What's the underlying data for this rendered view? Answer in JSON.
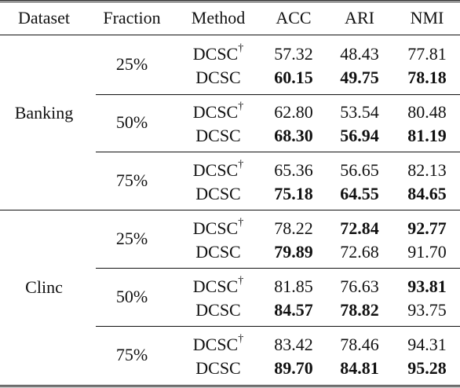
{
  "header": [
    "Dataset",
    "Fraction",
    "Method",
    "ACC",
    "ARI",
    "NMI"
  ],
  "groups": [
    {
      "dataset": "Banking",
      "blocks": [
        {
          "fraction": "25%",
          "rows": [
            {
              "method": "DCSC",
              "dagger": "†",
              "acc": "57.32",
              "ari": "48.43",
              "nmi": "77.81",
              "bold": [
                false,
                false,
                false
              ]
            },
            {
              "method": "DCSC",
              "dagger": "",
              "acc": "60.15",
              "ari": "49.75",
              "nmi": "78.18",
              "bold": [
                true,
                true,
                true
              ]
            }
          ]
        },
        {
          "fraction": "50%",
          "rows": [
            {
              "method": "DCSC",
              "dagger": "†",
              "acc": "62.80",
              "ari": "53.54",
              "nmi": "80.48",
              "bold": [
                false,
                false,
                false
              ]
            },
            {
              "method": "DCSC",
              "dagger": "",
              "acc": "68.30",
              "ari": "56.94",
              "nmi": "81.19",
              "bold": [
                true,
                true,
                true
              ]
            }
          ]
        },
        {
          "fraction": "75%",
          "rows": [
            {
              "method": "DCSC",
              "dagger": "†",
              "acc": "65.36",
              "ari": "56.65",
              "nmi": "82.13",
              "bold": [
                false,
                false,
                false
              ]
            },
            {
              "method": "DCSC",
              "dagger": "",
              "acc": "75.18",
              "ari": "64.55",
              "nmi": "84.65",
              "bold": [
                true,
                true,
                true
              ]
            }
          ]
        }
      ]
    },
    {
      "dataset": "Clinc",
      "blocks": [
        {
          "fraction": "25%",
          "rows": [
            {
              "method": "DCSC",
              "dagger": "†",
              "acc": "78.22",
              "ari": "72.84",
              "nmi": "92.77",
              "bold": [
                false,
                true,
                true
              ]
            },
            {
              "method": "DCSC",
              "dagger": "",
              "acc": "79.89",
              "ari": "72.68",
              "nmi": "91.70",
              "bold": [
                true,
                false,
                false
              ]
            }
          ]
        },
        {
          "fraction": "50%",
          "rows": [
            {
              "method": "DCSC",
              "dagger": "†",
              "acc": "81.85",
              "ari": "76.63",
              "nmi": "93.81",
              "bold": [
                false,
                false,
                true
              ]
            },
            {
              "method": "DCSC",
              "dagger": "",
              "acc": "84.57",
              "ari": "78.82",
              "nmi": "93.75",
              "bold": [
                true,
                true,
                false
              ]
            }
          ]
        },
        {
          "fraction": "75%",
          "rows": [
            {
              "method": "DCSC",
              "dagger": "†",
              "acc": "83.42",
              "ari": "78.46",
              "nmi": "94.31",
              "bold": [
                false,
                false,
                false
              ]
            },
            {
              "method": "DCSC",
              "dagger": "",
              "acc": "89.70",
              "ari": "84.81",
              "nmi": "95.28",
              "bold": [
                true,
                true,
                true
              ]
            }
          ]
        }
      ]
    }
  ]
}
